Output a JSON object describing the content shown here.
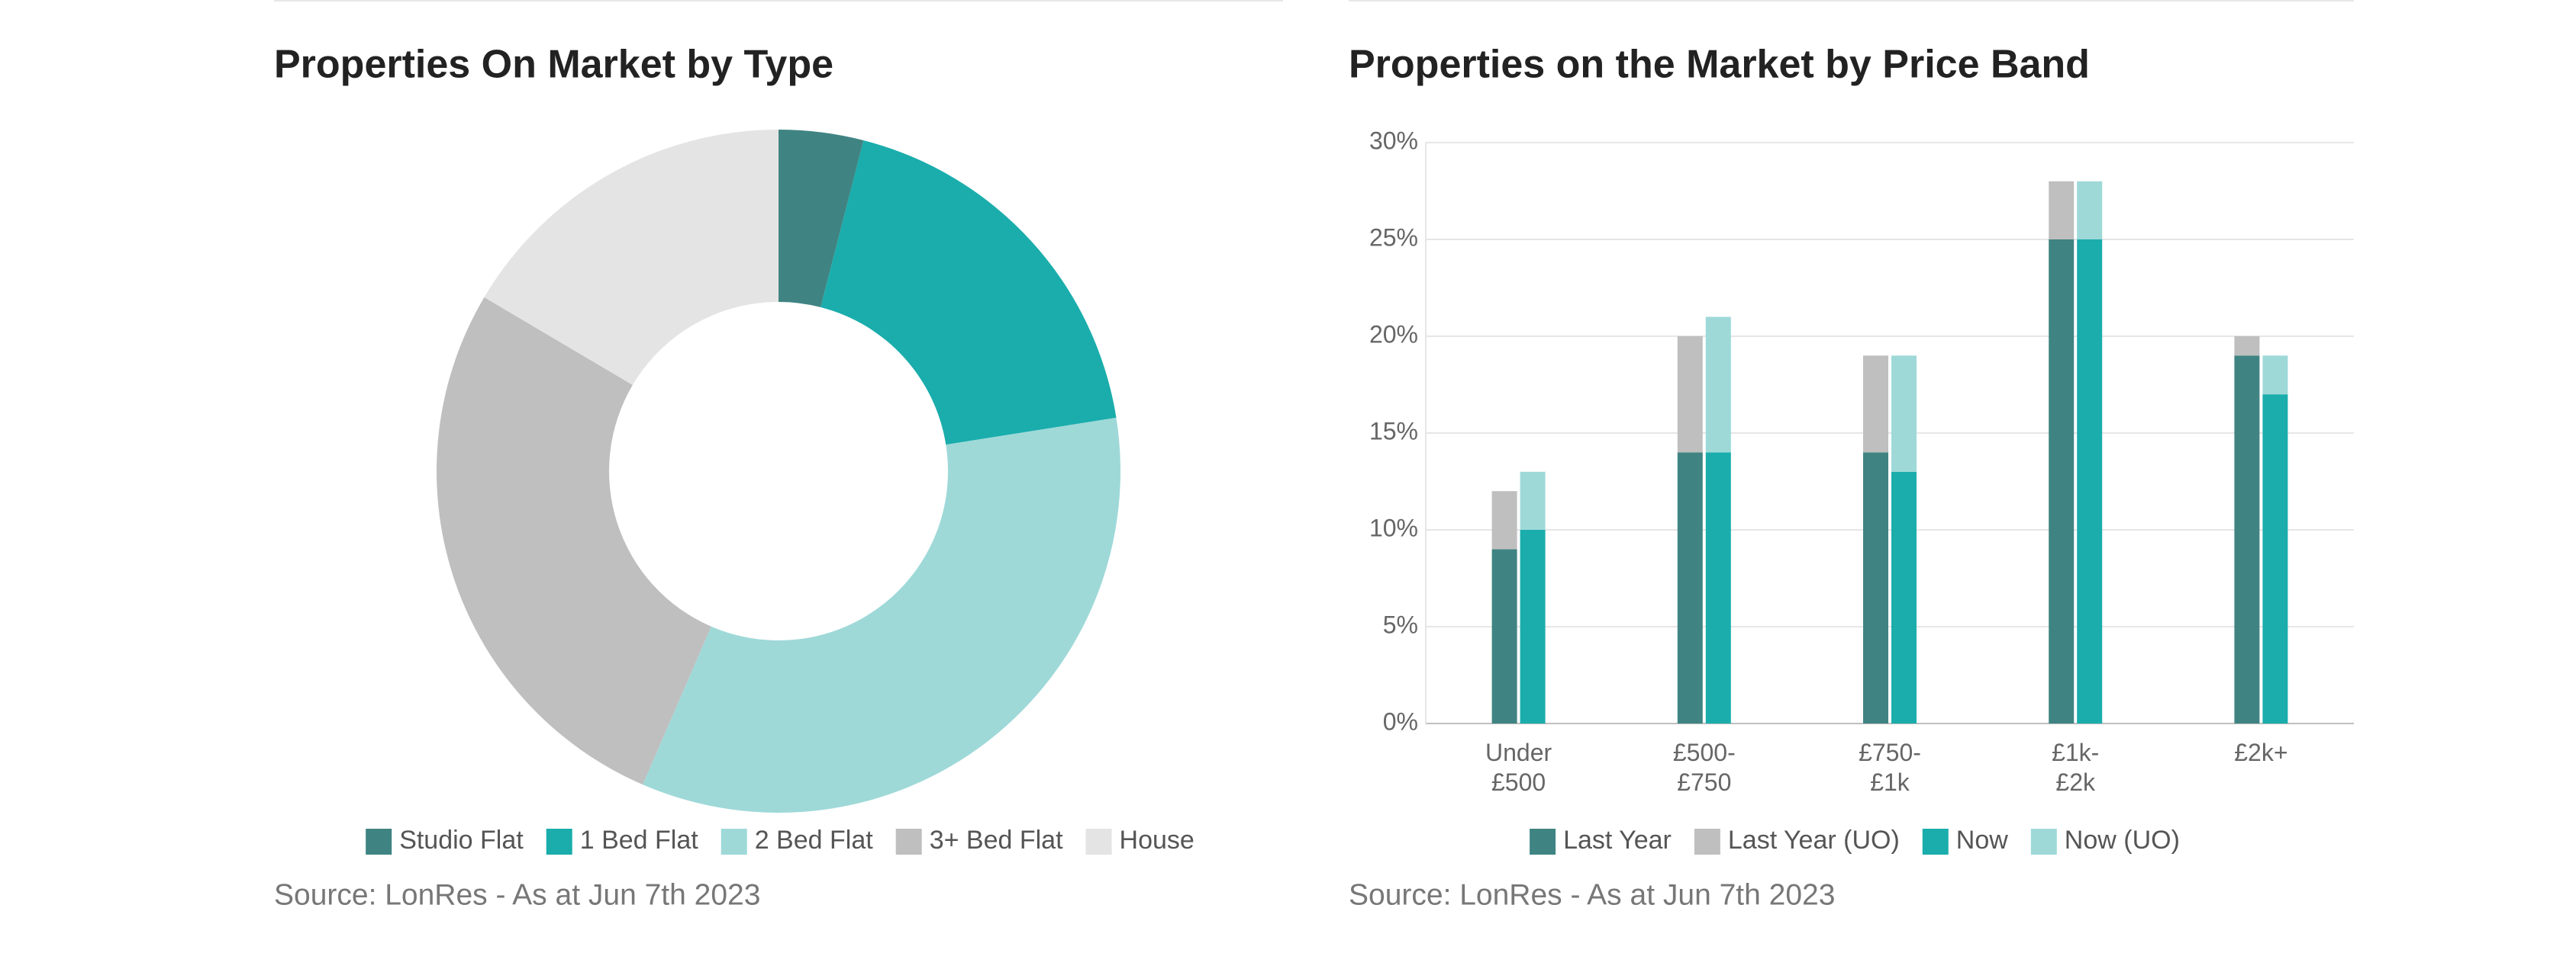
{
  "chart_data": [
    {
      "type": "donut",
      "title": "Properties On Market by Type",
      "categories": [
        "Studio Flat",
        "1 Bed Flat",
        "2 Bed Flat",
        "3+ Bed Flat",
        "House"
      ],
      "values": [
        4,
        18.5,
        34,
        27,
        16.5
      ],
      "colors": [
        "#3f8482",
        "#1aadac",
        "#9ed9d8",
        "#bfbfbf",
        "#e4e4e4"
      ],
      "source": "Source: LonRes - As at Jun 7th 2023"
    },
    {
      "type": "bar",
      "title": "Properties on the Market by Price Band",
      "categories": [
        "Under\n£500",
        "£500-\n£750",
        "£750-\n£1k",
        "£1k-\n£2k",
        "£2k+"
      ],
      "series": [
        {
          "name": "Last Year",
          "color": "#3f8482",
          "values": [
            9,
            14,
            14,
            25,
            19
          ]
        },
        {
          "name": "Last Year (UO)",
          "color": "#bfbfbf",
          "values": [
            3,
            6,
            5,
            3,
            1
          ]
        },
        {
          "name": "Now",
          "color": "#1aadac",
          "values": [
            10,
            14,
            13,
            25,
            17
          ]
        },
        {
          "name": "Now (UO)",
          "color": "#9ed9d8",
          "values": [
            3,
            7,
            6,
            3,
            2
          ]
        }
      ],
      "ylim": [
        0,
        30
      ],
      "yticks": [
        {
          "value": 0,
          "label": "0%"
        },
        {
          "value": 5,
          "label": "5%"
        },
        {
          "value": 10,
          "label": "10%"
        },
        {
          "value": 15,
          "label": "15%"
        },
        {
          "value": 20,
          "label": "20%"
        },
        {
          "value": 25,
          "label": "25%"
        },
        {
          "value": 30,
          "label": "30%"
        }
      ],
      "grid": true,
      "source": "Source: LonRes - As at Jun 7th 2023"
    }
  ]
}
